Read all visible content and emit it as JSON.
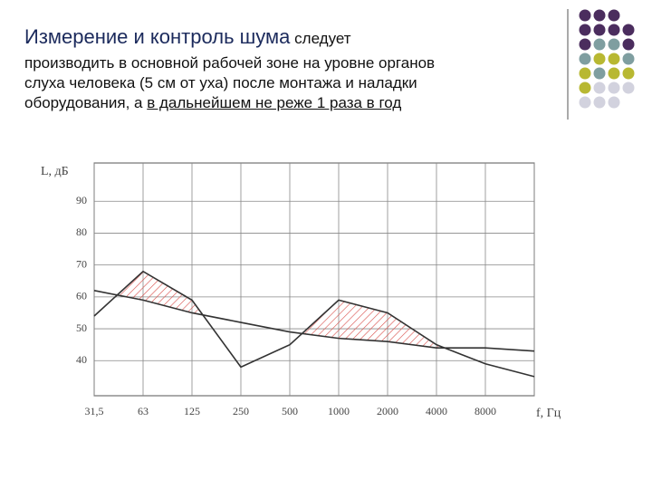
{
  "slide": {
    "title": "Измерение и контроль шума",
    "title_tail": "следует",
    "line1": "производить в основной рабочей зоне на уровне органов",
    "line2": "слуха человека (5 см от уха)  после монтажа и наладки",
    "line3": "оборудования, а ",
    "underlined": "в дальнейшем не реже 1 раза в год"
  },
  "chart_data": {
    "type": "line",
    "y_label": "L, дБ",
    "x_label": "f, Гц",
    "categories": [
      "31,5",
      "63",
      "125",
      "250",
      "500",
      "1000",
      "2000",
      "4000",
      "8000",
      null
    ],
    "series": [
      {
        "color": "#333333",
        "values": [
          54,
          68,
          59,
          38,
          45,
          59,
          55,
          45,
          39,
          35
        ]
      },
      {
        "color": "#333333",
        "values": [
          62,
          59,
          55,
          52,
          49,
          47,
          46,
          44,
          44,
          43
        ]
      }
    ],
    "hatch_color": "#d9534f",
    "ylim": [
      29,
      102
    ],
    "yticks": [
      40,
      50,
      60,
      70,
      80,
      90
    ],
    "grid": true
  }
}
